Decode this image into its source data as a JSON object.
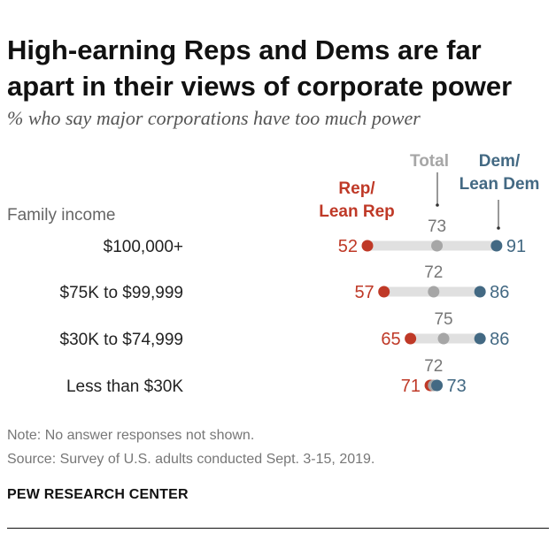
{
  "title": "High-earning Reps and Dems are far apart in their views of corporate power",
  "subtitle": "% who say major corporations have too much power",
  "note": "Note: No answer responses not shown.",
  "source": "Source: Survey of U.S. adults conducted Sept. 3-15, 2019.",
  "brand": "PEW RESEARCH CENTER",
  "colors": {
    "rep": "#bf3927",
    "dem": "#436983",
    "total": "#a6a6a6",
    "bar": "#e0e0e0"
  },
  "chart_data": {
    "type": "dot",
    "row_header": "Family income",
    "categories": [
      "$100,000+",
      "$75K to $99,999",
      "$30K to $74,999",
      "Less than $30K"
    ],
    "series": [
      {
        "key": "rep",
        "name": "Rep/ Lean Rep",
        "name_lines": [
          "Rep/",
          "Lean Rep"
        ],
        "values": [
          52,
          57,
          65,
          71
        ]
      },
      {
        "key": "total",
        "name": "Total",
        "name_lines": [
          "Total"
        ],
        "values": [
          73,
          72,
          75,
          72
        ]
      },
      {
        "key": "dem",
        "name": "Dem/ Lean Dem",
        "name_lines": [
          "Dem/",
          "Lean Dem"
        ],
        "values": [
          91,
          86,
          86,
          73
        ]
      }
    ]
  }
}
